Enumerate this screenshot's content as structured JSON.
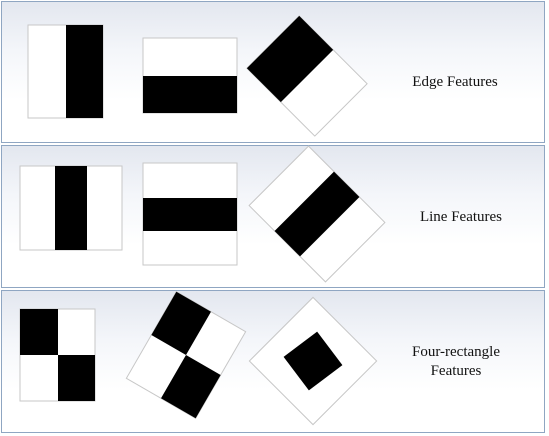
{
  "rows": [
    {
      "label": "Edge Features"
    },
    {
      "label": "Line Features"
    },
    {
      "label": "Four-rectangle Features",
      "label_line1": "Four-rectangle",
      "label_line2": "Features"
    }
  ]
}
